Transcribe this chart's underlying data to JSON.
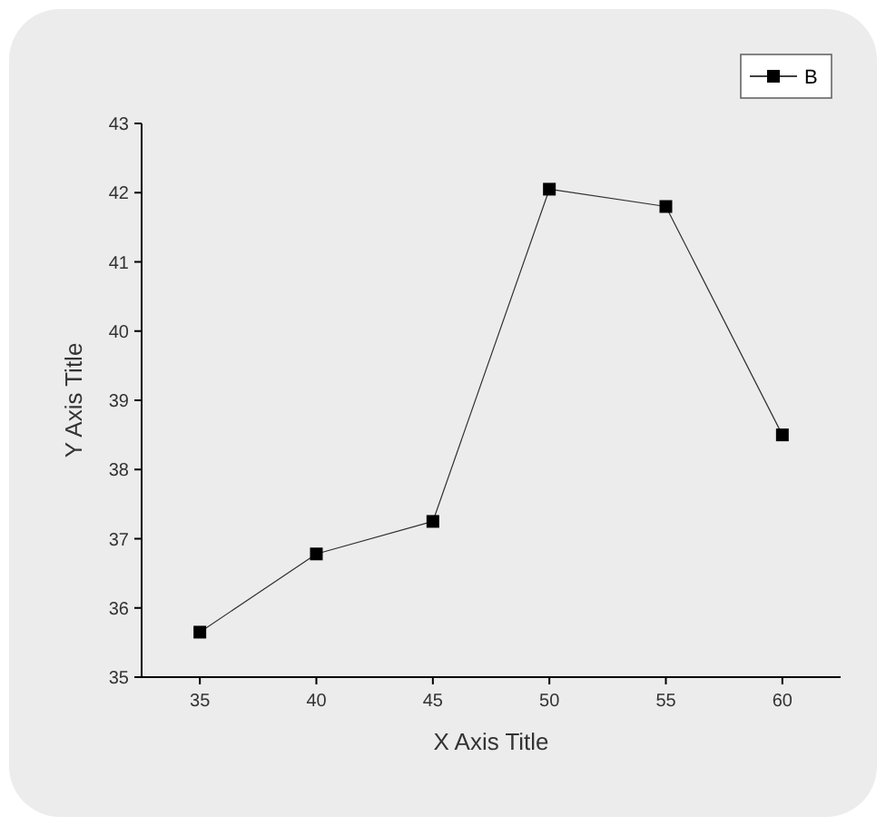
{
  "chart_data": {
    "type": "line",
    "xlabel": "X Axis Title",
    "ylabel": "Y Axis Title",
    "x": [
      35,
      40,
      45,
      50,
      55,
      60
    ],
    "series": [
      {
        "name": "B",
        "color": "#000000",
        "values": [
          35.65,
          36.78,
          37.25,
          42.05,
          41.8,
          38.5
        ]
      }
    ],
    "xlim": [
      32.5,
      62.5
    ],
    "xticks": [
      35,
      40,
      45,
      50,
      55,
      60
    ],
    "ylim": [
      35,
      43
    ],
    "yticks": [
      35,
      36,
      37,
      38,
      39,
      40,
      41,
      42,
      43
    ],
    "marker": "square",
    "legend": "top right",
    "grid": false
  }
}
